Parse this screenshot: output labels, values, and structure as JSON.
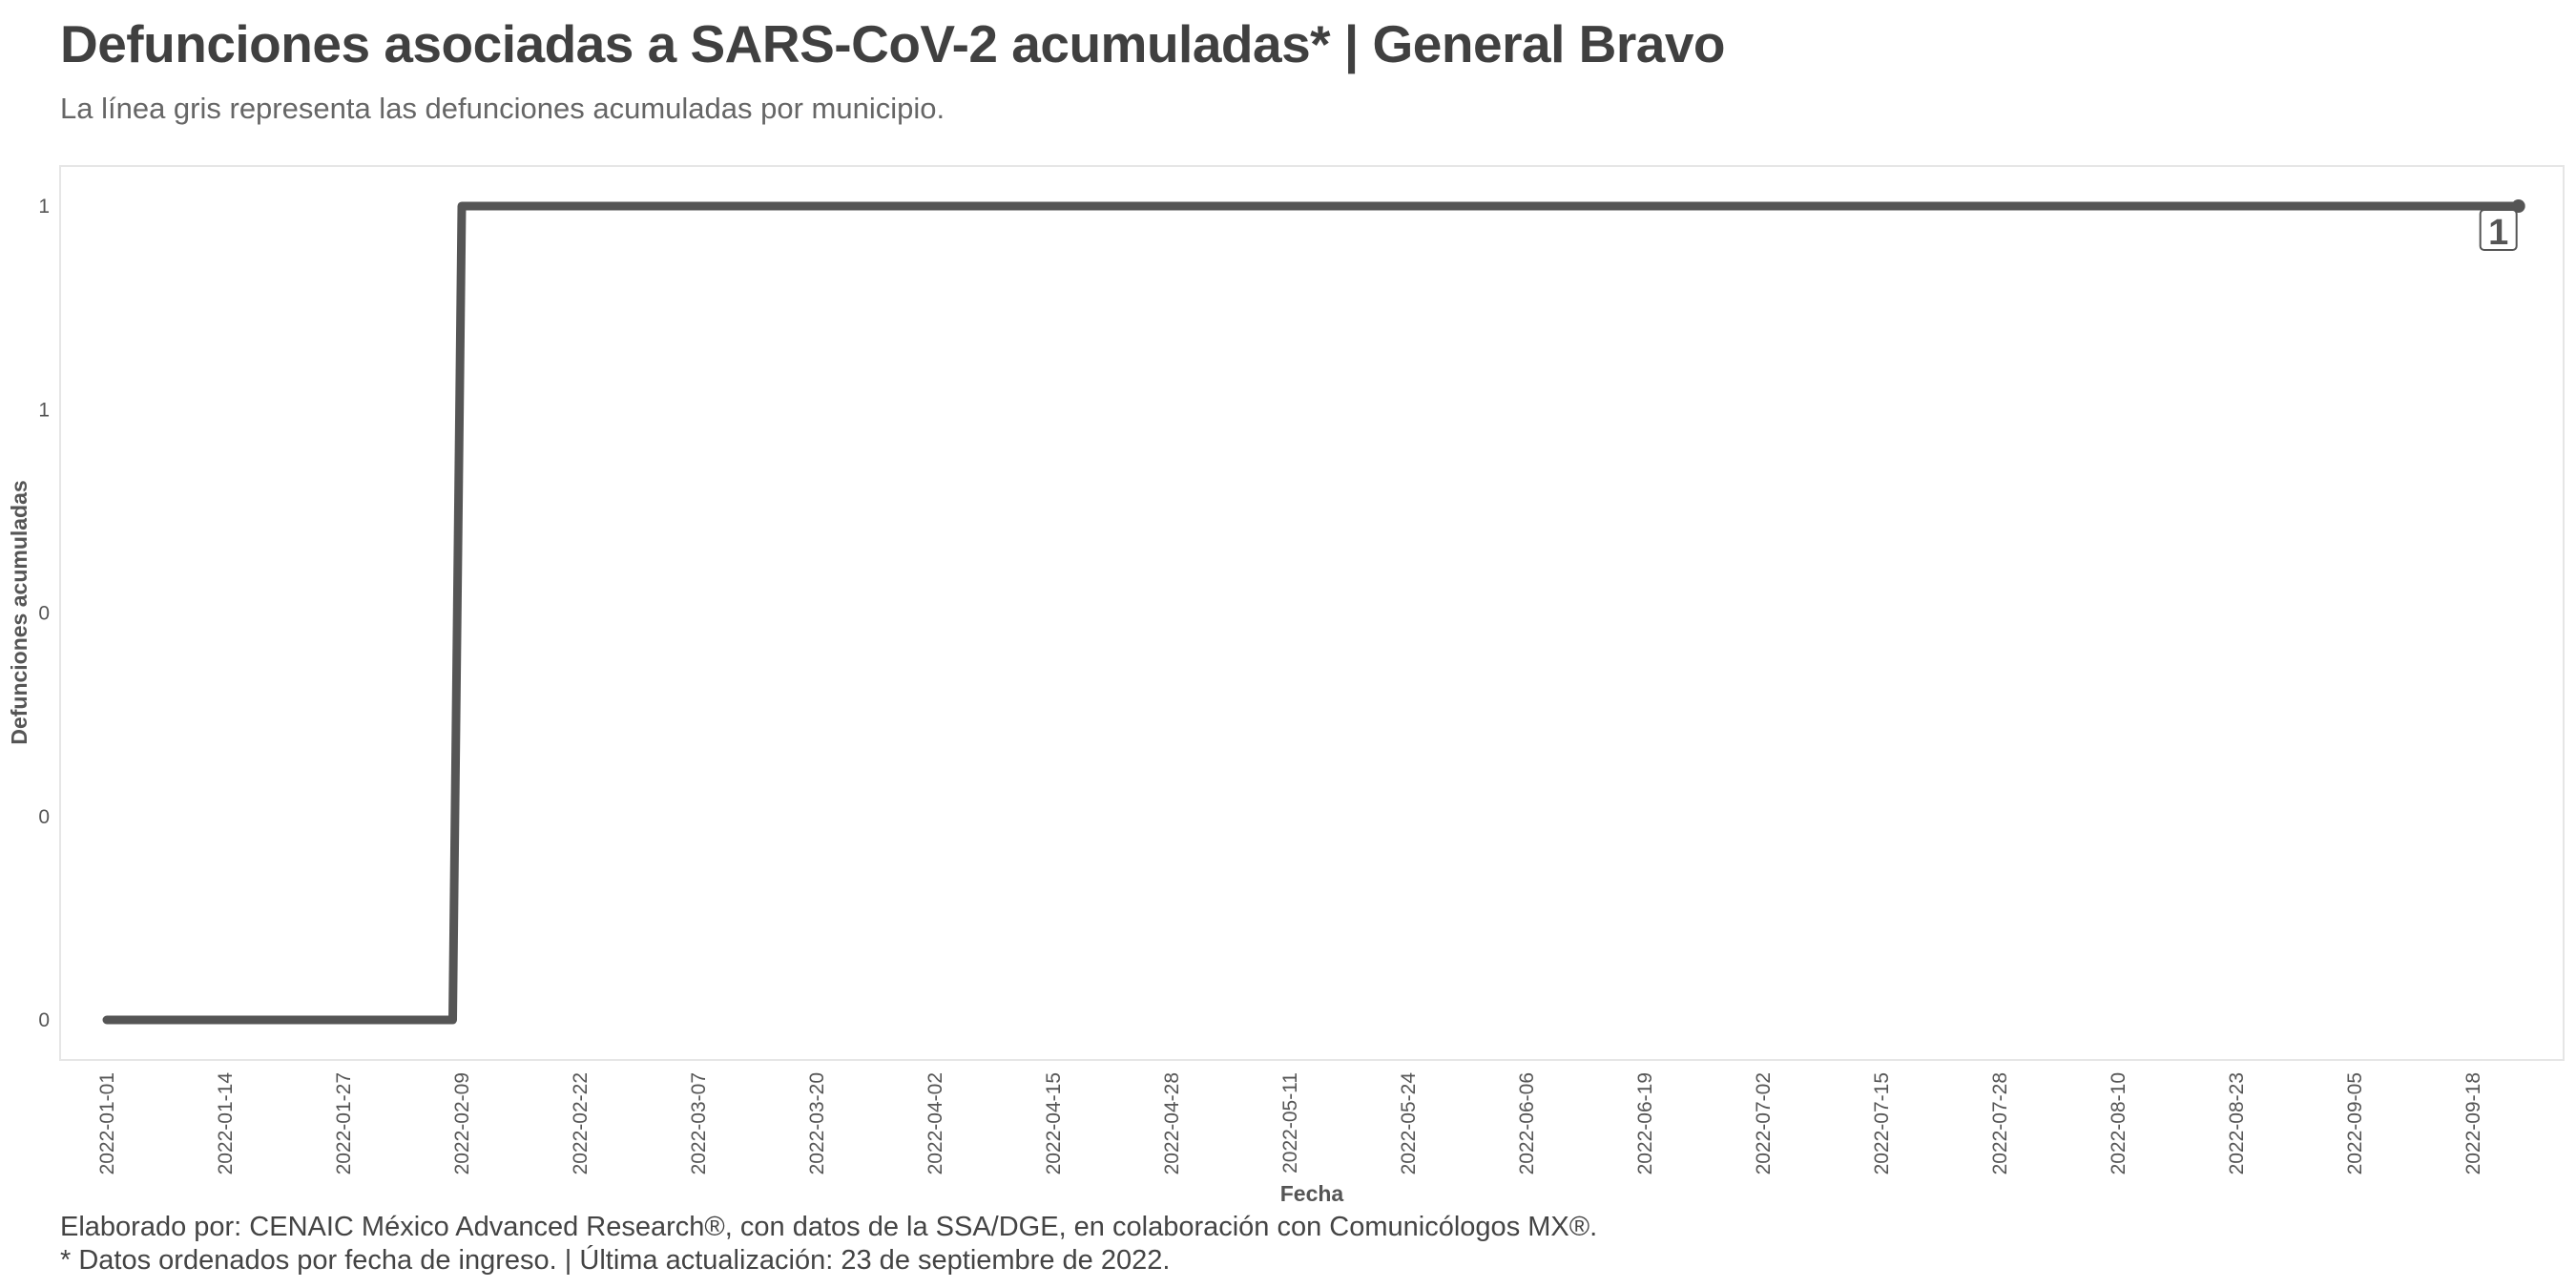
{
  "header": {
    "title": "Defunciones asociadas a SARS-CoV-2 acumuladas* | General Bravo",
    "subtitle": "La línea gris representa las defunciones acumuladas por municipio."
  },
  "footer": {
    "credit": "Elaborado por: CENAIC México Advanced Research®, con datos de la SSA/DGE, en colaboración con Comunicólogos MX®.",
    "note": "* Datos ordenados por fecha de ingreso. | Última actualización: 23 de septiembre de 2022."
  },
  "colors": {
    "line": "#555555",
    "panel_border": "#e6e6e6"
  },
  "chart_data": {
    "type": "line",
    "xlabel": "Fecha",
    "ylabel": "Defunciones acumuladas",
    "x_tick_labels": [
      "2022-01-01",
      "2022-01-14",
      "2022-01-27",
      "2022-02-09",
      "2022-02-22",
      "2022-03-07",
      "2022-03-20",
      "2022-04-02",
      "2022-04-15",
      "2022-04-28",
      "2022-05-11",
      "2022-05-24",
      "2022-06-06",
      "2022-06-19",
      "2022-07-02",
      "2022-07-15",
      "2022-07-28",
      "2022-08-10",
      "2022-08-23",
      "2022-09-05",
      "2022-09-18"
    ],
    "y_tick_values": [
      0,
      0.25,
      0.5,
      0.75,
      1
    ],
    "y_tick_labels": [
      "0",
      "0",
      "0",
      "1",
      "1"
    ],
    "ylim": [
      0,
      1
    ],
    "xlim": [
      "2022-01-01",
      "2022-09-23"
    ],
    "grid": false,
    "series": [
      {
        "x": [
          "2022-01-01",
          "2022-02-08",
          "2022-02-09",
          "2022-09-23"
        ],
        "y": [
          0,
          0,
          1,
          1
        ]
      }
    ],
    "end_label": "1"
  }
}
